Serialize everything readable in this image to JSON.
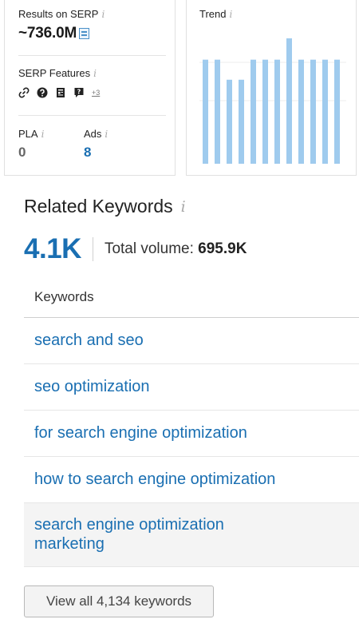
{
  "serp": {
    "results_label": "Results on SERP",
    "results_value": "~736.0M",
    "features_label": "SERP Features",
    "features_more": "+3",
    "features_icons": [
      "link-icon",
      "question-circle-icon",
      "document-icon",
      "faq-icon"
    ],
    "pla_label": "PLA",
    "pla_value": "0",
    "ads_label": "Ads",
    "ads_value": "8"
  },
  "trend": {
    "title": "Trend",
    "values": [
      0.83,
      0.83,
      0.67,
      0.67,
      0.83,
      0.83,
      0.83,
      1.0,
      0.83,
      0.83,
      0.83,
      0.83
    ]
  },
  "info_glyph": "i",
  "related": {
    "title": "Related Keywords",
    "count": "4.1K",
    "total_volume_label": "Total volume:",
    "total_volume_value": "695.9K",
    "column_header": "Keywords",
    "keywords": [
      "search and seo",
      "seo optimization",
      "for search engine optimization",
      "how to search engine optimization",
      "search engine optimization marketing"
    ],
    "view_all_label": "View all 4,134 keywords"
  },
  "colors": {
    "accent_blue": "#1a6fb2",
    "bar_color": "#9fcbee"
  }
}
